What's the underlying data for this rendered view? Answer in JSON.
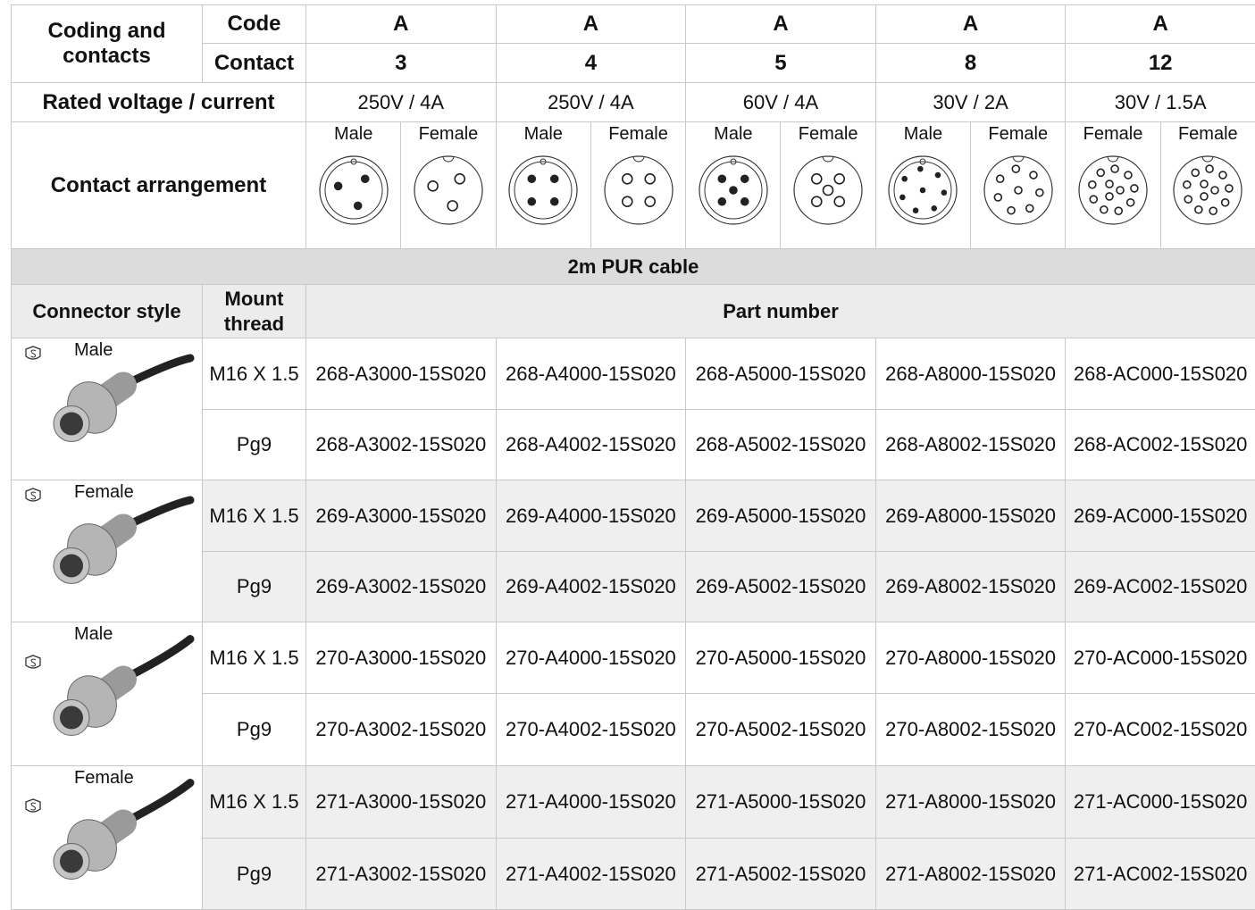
{
  "header": {
    "coding_label": "Coding and contacts",
    "code_label": "Code",
    "contact_label": "Contact",
    "rated_label": "Rated voltage / current",
    "arrangement_label": "Contact arrangement"
  },
  "columns": [
    {
      "code": "A",
      "contacts": "3",
      "rating": "250V / 4A",
      "views": [
        "Male",
        "Female"
      ]
    },
    {
      "code": "A",
      "contacts": "4",
      "rating": "250V / 4A",
      "views": [
        "Male",
        "Female"
      ]
    },
    {
      "code": "A",
      "contacts": "5",
      "rating": "60V / 4A",
      "views": [
        "Male",
        "Female"
      ]
    },
    {
      "code": "A",
      "contacts": "8",
      "rating": "30V / 2A",
      "views": [
        "Male",
        "Female"
      ]
    },
    {
      "code": "A",
      "contacts": "12",
      "rating": "30V / 1.5A",
      "views": [
        "Female",
        "Female"
      ]
    }
  ],
  "section": "2m PUR cable",
  "table_header": {
    "connector_style": "Connector style",
    "mount_thread": "Mount thread",
    "part_number": "Part number"
  },
  "groups": [
    {
      "style": "Male",
      "rows": [
        {
          "thread": "M16 X 1.5",
          "parts": [
            "268-A3000-15S020",
            "268-A4000-15S020",
            "268-A5000-15S020",
            "268-A8000-15S020",
            "268-AC000-15S020"
          ]
        },
        {
          "thread": "Pg9",
          "parts": [
            "268-A3002-15S020",
            "268-A4002-15S020",
            "268-A5002-15S020",
            "268-A8002-15S020",
            "268-AC002-15S020"
          ]
        }
      ]
    },
    {
      "style": "Female",
      "rows": [
        {
          "thread": "M16 X 1.5",
          "parts": [
            "269-A3000-15S020",
            "269-A4000-15S020",
            "269-A5000-15S020",
            "269-A8000-15S020",
            "269-AC000-15S020"
          ]
        },
        {
          "thread": "Pg9",
          "parts": [
            "269-A3002-15S020",
            "269-A4002-15S020",
            "269-A5002-15S020",
            "269-A8002-15S020",
            "269-AC002-15S020"
          ]
        }
      ]
    },
    {
      "style": "Male",
      "rows": [
        {
          "thread": "M16 X 1.5",
          "parts": [
            "270-A3000-15S020",
            "270-A4000-15S020",
            "270-A5000-15S020",
            "270-A8000-15S020",
            "270-AC000-15S020"
          ]
        },
        {
          "thread": "Pg9",
          "parts": [
            "270-A3002-15S020",
            "270-A4002-15S020",
            "270-A5002-15S020",
            "270-A8002-15S020",
            "270-AC002-15S020"
          ]
        }
      ]
    },
    {
      "style": "Female",
      "rows": [
        {
          "thread": "M16 X 1.5",
          "parts": [
            "271-A3000-15S020",
            "271-A4000-15S020",
            "271-A5000-15S020",
            "271-A8000-15S020",
            "271-AC000-15S020"
          ]
        },
        {
          "thread": "Pg9",
          "parts": [
            "271-A3002-15S020",
            "271-A4002-15S020",
            "271-A5002-15S020",
            "271-A8002-15S020",
            "271-AC002-15S020"
          ]
        }
      ]
    }
  ]
}
